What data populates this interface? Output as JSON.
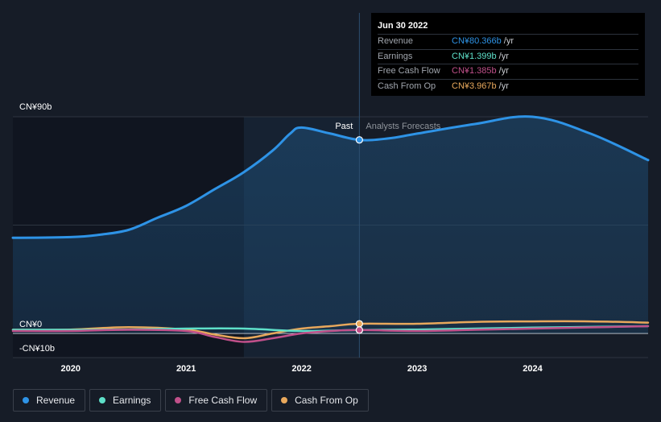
{
  "chart_data": {
    "type": "line",
    "x_unit": "year",
    "xlim": [
      2019.5,
      2025.0
    ],
    "ylim": [
      -10,
      90
    ],
    "y_tick_labels": [
      {
        "value": 90,
        "label": "CN¥90b"
      },
      {
        "value": 0,
        "label": "CN¥0"
      },
      {
        "value": -10,
        "label": "-CN¥10b"
      }
    ],
    "x_ticks": [
      {
        "value": 2020.0,
        "label": "2020"
      },
      {
        "value": 2021.0,
        "label": "2021"
      },
      {
        "value": 2022.0,
        "label": "2022"
      },
      {
        "value": 2023.0,
        "label": "2023"
      },
      {
        "value": 2024.0,
        "label": "2024"
      }
    ],
    "divider_x": 2022.5,
    "highlight_start_x": 2021.5,
    "past_label": "Past",
    "forecast_label": "Analysts Forecasts",
    "series": [
      {
        "name": "Revenue",
        "color": "#2e93e6",
        "area": true,
        "points": [
          [
            2019.5,
            39.7
          ],
          [
            2020.0,
            40.0
          ],
          [
            2020.25,
            41.0
          ],
          [
            2020.5,
            43.0
          ],
          [
            2020.75,
            48.0
          ],
          [
            2021.0,
            53.0
          ],
          [
            2021.25,
            60.0
          ],
          [
            2021.5,
            67.0
          ],
          [
            2021.75,
            76.0
          ],
          [
            2021.9,
            83.0
          ],
          [
            2022.0,
            85.5
          ],
          [
            2022.25,
            83.0
          ],
          [
            2022.5,
            80.4
          ],
          [
            2022.75,
            81.0
          ],
          [
            2023.0,
            83.0
          ],
          [
            2023.5,
            87.0
          ],
          [
            2024.0,
            90.0
          ],
          [
            2024.5,
            83.0
          ],
          [
            2025.0,
            72.0
          ]
        ]
      },
      {
        "name": "Earnings",
        "color": "#5ee0c9",
        "area": false,
        "points": [
          [
            2019.5,
            1.5
          ],
          [
            2020.0,
            1.5
          ],
          [
            2020.5,
            1.6
          ],
          [
            2021.0,
            2.0
          ],
          [
            2021.5,
            2.0
          ],
          [
            2022.0,
            1.0
          ],
          [
            2022.5,
            1.4
          ],
          [
            2023.0,
            1.6
          ],
          [
            2023.5,
            2.0
          ],
          [
            2024.0,
            2.4
          ],
          [
            2024.5,
            2.7
          ],
          [
            2025.0,
            3.0
          ]
        ]
      },
      {
        "name": "Free Cash Flow",
        "color": "#c0508a",
        "area": false,
        "points": [
          [
            2019.5,
            1.0
          ],
          [
            2020.0,
            1.0
          ],
          [
            2020.5,
            1.5
          ],
          [
            2021.0,
            1.0
          ],
          [
            2021.25,
            -1.5
          ],
          [
            2021.5,
            -3.5
          ],
          [
            2021.75,
            -2.0
          ],
          [
            2022.0,
            0.0
          ],
          [
            2022.25,
            1.0
          ],
          [
            2022.5,
            1.4
          ],
          [
            2023.0,
            1.0
          ],
          [
            2023.5,
            1.5
          ],
          [
            2024.0,
            2.0
          ],
          [
            2024.5,
            2.5
          ],
          [
            2025.0,
            3.0
          ]
        ]
      },
      {
        "name": "Cash From Op",
        "color": "#e8a85c",
        "area": false,
        "points": [
          [
            2019.5,
            1.5
          ],
          [
            2020.0,
            1.6
          ],
          [
            2020.5,
            2.6
          ],
          [
            2021.0,
            1.6
          ],
          [
            2021.25,
            -0.5
          ],
          [
            2021.5,
            -2.0
          ],
          [
            2021.75,
            0.0
          ],
          [
            2022.0,
            2.0
          ],
          [
            2022.25,
            3.0
          ],
          [
            2022.5,
            4.0
          ],
          [
            2023.0,
            4.0
          ],
          [
            2023.5,
            4.8
          ],
          [
            2024.0,
            5.0
          ],
          [
            2024.5,
            5.0
          ],
          [
            2025.0,
            4.5
          ]
        ]
      }
    ]
  },
  "tooltip": {
    "date": "Jun 30 2022",
    "rows": [
      {
        "name": "Revenue",
        "value": "CN¥80.366b",
        "unit": "/yr",
        "color": "#2e93e6"
      },
      {
        "name": "Earnings",
        "value": "CN¥1.399b",
        "unit": "/yr",
        "color": "#5ee0c9"
      },
      {
        "name": "Free Cash Flow",
        "value": "CN¥1.385b",
        "unit": "/yr",
        "color": "#c0508a"
      },
      {
        "name": "Cash From Op",
        "value": "CN¥3.967b",
        "unit": "/yr",
        "color": "#e8a85c"
      }
    ]
  },
  "legend": [
    {
      "label": "Revenue",
      "color": "#2e93e6"
    },
    {
      "label": "Earnings",
      "color": "#5ee0c9"
    },
    {
      "label": "Free Cash Flow",
      "color": "#c0508a"
    },
    {
      "label": "Cash From Op",
      "color": "#e8a85c"
    }
  ]
}
